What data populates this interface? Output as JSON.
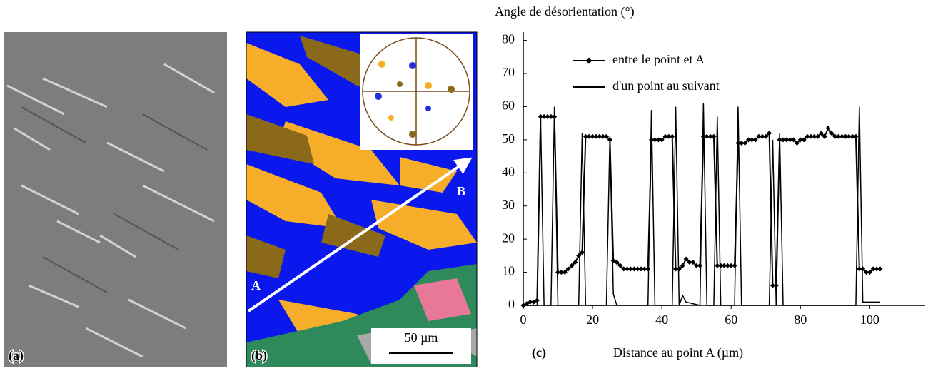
{
  "panels": {
    "a": {
      "label": "(a)"
    },
    "b": {
      "label": "(b)",
      "point_a": "A",
      "point_b": "B",
      "scale_bar": "50 µm"
    }
  },
  "chart_data": {
    "type": "line",
    "panel_label": "(c)",
    "y_title": "Angle de désorientation (°)",
    "x_title": "Distance au point A (µm)",
    "xlim": [
      0,
      116
    ],
    "ylim": [
      0,
      82.5
    ],
    "xticks": [
      0,
      20,
      40,
      60,
      80,
      100
    ],
    "yticks": [
      0,
      10,
      20,
      30,
      40,
      50,
      60,
      70,
      80
    ],
    "legend": "top-left",
    "grid": false,
    "series": [
      {
        "name": "entre le point et A",
        "color": "#000000",
        "marker": "diamond",
        "x": [
          0,
          1,
          2,
          3,
          4,
          5,
          6,
          7,
          8,
          9,
          10,
          11,
          12,
          13,
          14,
          15,
          16,
          17,
          18,
          19,
          20,
          21,
          22,
          23,
          24,
          25,
          26,
          27,
          28,
          29,
          30,
          31,
          32,
          33,
          34,
          35,
          36,
          37,
          38,
          39,
          40,
          41,
          42,
          43,
          44,
          45,
          46,
          47,
          48,
          49,
          50,
          51,
          52,
          53,
          54,
          55,
          56,
          57,
          58,
          59,
          60,
          61,
          62,
          63,
          64,
          65,
          66,
          67,
          68,
          69,
          70,
          71,
          72,
          73,
          74,
          75,
          76,
          77,
          78,
          79,
          80,
          81,
          82,
          83,
          84,
          85,
          86,
          87,
          88,
          89,
          90,
          91,
          92,
          93,
          94,
          95,
          96,
          97,
          98,
          99,
          100,
          101,
          102,
          103
        ],
        "values": [
          0,
          0.5,
          1,
          1,
          1.5,
          57,
          57,
          57,
          57,
          57,
          10,
          10,
          10,
          11,
          12,
          13,
          15,
          16,
          51,
          51,
          51,
          51,
          51,
          51,
          51,
          50,
          13.5,
          13,
          12,
          11,
          11,
          11,
          11,
          11,
          11,
          11,
          11,
          50,
          50,
          50,
          50,
          51,
          51,
          51,
          11,
          11,
          12,
          14,
          13,
          13,
          12,
          12,
          51,
          51,
          51,
          51,
          12,
          12,
          12,
          12,
          12,
          12,
          49,
          49,
          49,
          50,
          50,
          50,
          51,
          51,
          51,
          52,
          6,
          6,
          50,
          50,
          50,
          50,
          50,
          49,
          50,
          50,
          51,
          51,
          51,
          51,
          52,
          51,
          53.5,
          52,
          51,
          51,
          51,
          51,
          51,
          51,
          51,
          11,
          11,
          10,
          10,
          11,
          11,
          11
        ]
      },
      {
        "name": "d'un point au suivant",
        "color": "#000000",
        "marker": "none",
        "x": [
          0,
          4,
          5,
          6,
          8,
          9,
          10,
          16,
          17,
          18,
          24,
          25,
          26,
          27,
          36,
          37,
          38,
          43,
          44,
          45,
          46,
          47,
          51,
          52,
          53,
          55,
          56,
          57,
          61,
          62,
          63,
          71,
          72,
          73,
          74,
          75,
          96,
          97,
          98,
          103
        ],
        "values": [
          0,
          0,
          57,
          0,
          0,
          60,
          0,
          0,
          52,
          0,
          0,
          51,
          3.5,
          0,
          0,
          59,
          0,
          0,
          60,
          0,
          3,
          1,
          0,
          61,
          0,
          0,
          57,
          0,
          0,
          60,
          0,
          0,
          50,
          0,
          52,
          0,
          0,
          60,
          1,
          1
        ]
      }
    ]
  }
}
